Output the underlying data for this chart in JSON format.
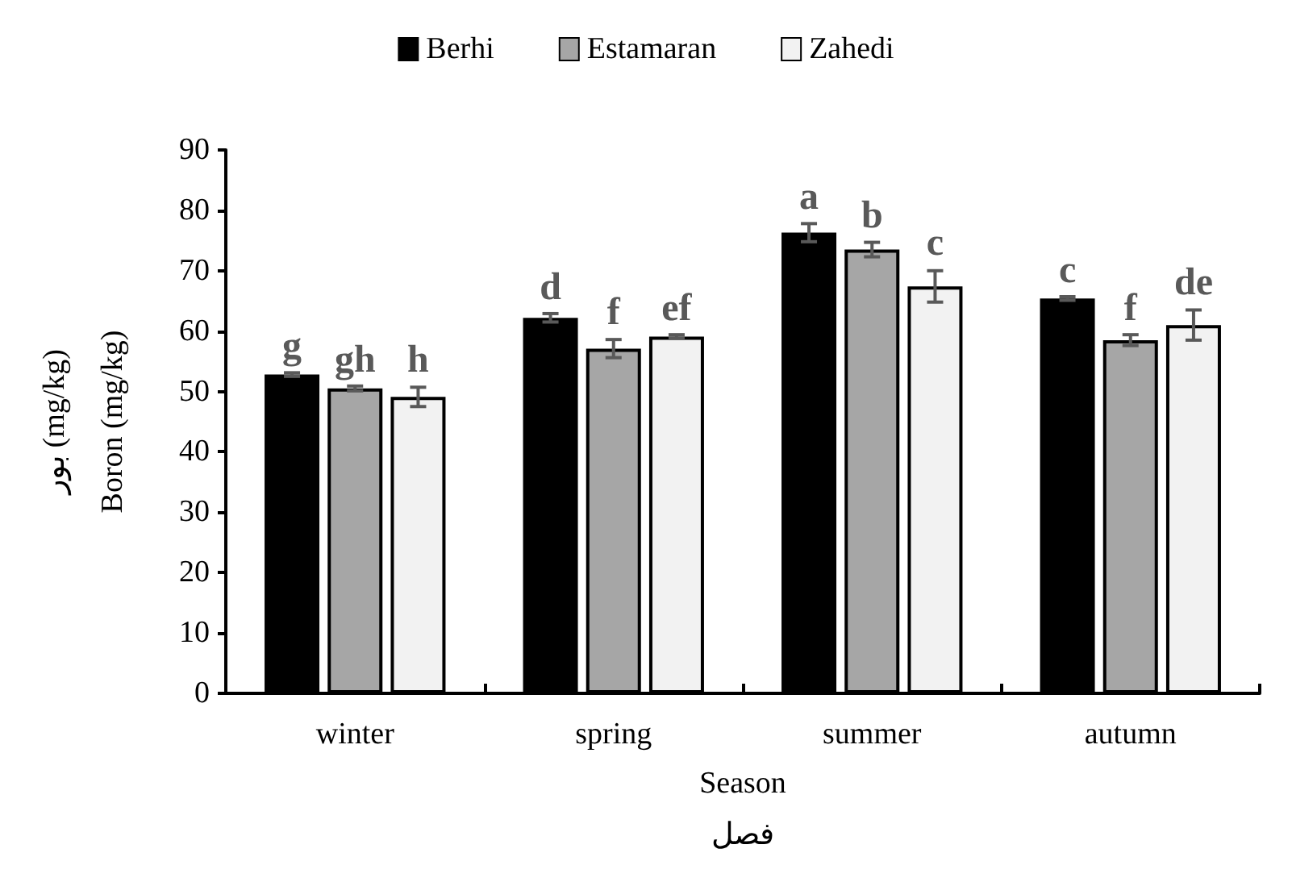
{
  "chart_data": {
    "type": "bar",
    "ylabel": "بور (mg/kg)\nBoron (mg/kg)",
    "xlabel": "Season\nفصل",
    "categories": [
      "winter",
      "spring",
      "summer",
      "autumn"
    ],
    "series": [
      {
        "name": "Berhi",
        "color": "#000000",
        "values": [
          52.8,
          62.2,
          76.3,
          65.4
        ],
        "errors": [
          0.3,
          0.7,
          1.5,
          0.3
        ],
        "value_labels": [
          "g",
          "d",
          "a",
          "c"
        ]
      },
      {
        "name": "Estamaran",
        "color": "#a6a6a6",
        "values": [
          50.5,
          57.1,
          73.5,
          58.5
        ],
        "errors": [
          0.4,
          1.5,
          1.2,
          0.9
        ],
        "value_labels": [
          "gh",
          "f",
          "b",
          "f"
        ]
      },
      {
        "name": "Zahedi",
        "color": "#f2f2f2",
        "values": [
          49.1,
          59.1,
          67.4,
          61.0
        ],
        "errors": [
          1.6,
          0.3,
          2.6,
          2.5
        ],
        "value_labels": [
          "h",
          "ef",
          "c",
          "de"
        ]
      }
    ],
    "ylim": [
      0,
      90
    ],
    "yticks": [
      0,
      10,
      20,
      30,
      40,
      50,
      60,
      70,
      80,
      90
    ],
    "grid": false,
    "legend": "top"
  }
}
